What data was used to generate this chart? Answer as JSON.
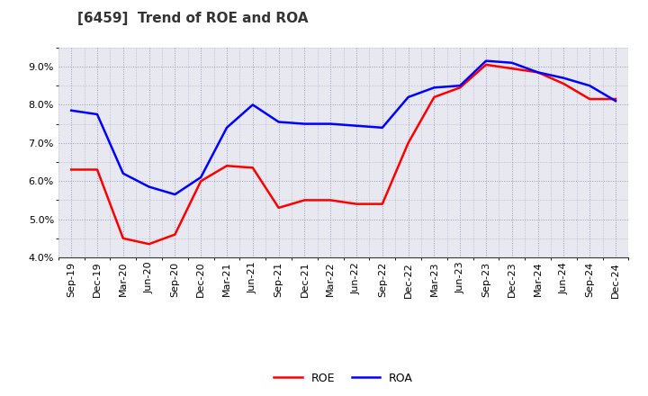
{
  "title": "[6459]  Trend of ROE and ROA",
  "x_labels": [
    "Sep-19",
    "Dec-19",
    "Mar-20",
    "Jun-20",
    "Sep-20",
    "Dec-20",
    "Mar-21",
    "Jun-21",
    "Sep-21",
    "Dec-21",
    "Mar-22",
    "Jun-22",
    "Sep-22",
    "Dec-22",
    "Mar-23",
    "Jun-23",
    "Sep-23",
    "Dec-23",
    "Mar-24",
    "Jun-24",
    "Sep-24",
    "Dec-24"
  ],
  "roe": [
    6.3,
    6.3,
    4.5,
    4.35,
    4.6,
    6.0,
    6.4,
    6.35,
    5.3,
    5.5,
    5.5,
    5.4,
    5.4,
    7.0,
    8.2,
    8.45,
    9.05,
    8.95,
    8.85,
    8.55,
    8.15,
    8.15
  ],
  "roa": [
    7.85,
    7.75,
    6.2,
    5.85,
    5.65,
    6.1,
    7.4,
    8.0,
    7.55,
    7.5,
    7.5,
    7.45,
    7.4,
    8.2,
    8.45,
    8.5,
    9.15,
    9.1,
    8.85,
    8.7,
    8.5,
    8.1
  ],
  "roe_color": "#ff0000",
  "roa_color": "#0000ff",
  "ylim_min": 4.0,
  "ylim_max": 9.5,
  "yticks": [
    4.0,
    5.0,
    6.0,
    7.0,
    8.0,
    9.0
  ],
  "background_color": "#ffffff",
  "plot_bg_color": "#e8e8f0",
  "grid_color": "#9999bb",
  "title_fontsize": 11,
  "axis_fontsize": 8,
  "legend_fontsize": 9,
  "line_width": 1.8
}
